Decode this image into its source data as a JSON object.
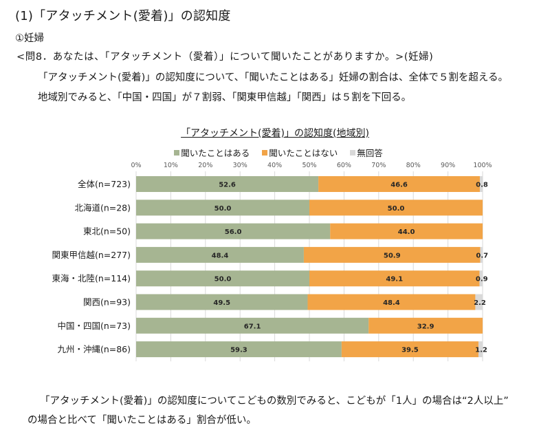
{
  "page": {
    "section_title": "(1)「アタッチメント(愛着)」の認知度",
    "sub_title": "①妊婦",
    "question": "<問8．あなたは、「アタッチメント（愛着）」について聞いたことがありますか。>(妊婦)",
    "summary_line_1": "「アタッチメント(愛着)」の認知度について、「聞いたことはある」妊婦の割合は、全体で５割を超える。",
    "summary_line_2": "地域別でみると、「中国・四国」が７割弱、「関東甲信越」「関西」は５割を下回る。",
    "footer_line_1": "「アタッチメント(愛着)」の認知度についてこどもの数別でみると、こどもが「1人」の場合は“2人以上”",
    "footer_line_2": "の場合と比べて「聞いたことはある」割合が低い。"
  },
  "chart_data": {
    "type": "bar",
    "orientation": "horizontal",
    "stacked": true,
    "title": "「アタッチメント(愛着)」の認知度(地域別)",
    "xlabel": "",
    "ylabel": "",
    "xlim": [
      0,
      100
    ],
    "x_ticks": [
      "0%",
      "10%",
      "20%",
      "30%",
      "40%",
      "50%",
      "60%",
      "70%",
      "80%",
      "90%",
      "100%"
    ],
    "grid": true,
    "legend_position": "top",
    "categories": [
      "全体(n=723)",
      "北海道(n=28)",
      "東北(n=50)",
      "関東甲信越(n=277)",
      "東海・北陸(n=114)",
      "関西(n=93)",
      "中国・四国(n=73)",
      "九州・沖縄(n=86)"
    ],
    "series": [
      {
        "name": "聞いたことはある",
        "color": "#a6b592",
        "values": [
          52.6,
          50.0,
          56.0,
          48.4,
          50.0,
          49.5,
          67.1,
          59.3
        ],
        "labels": [
          "52.6",
          "50.0",
          "56.0",
          "48.4",
          "50.0",
          "49.5",
          "67.1",
          "59.3"
        ]
      },
      {
        "name": "聞いたことはない",
        "color": "#f2a447",
        "values": [
          46.6,
          50.0,
          44.0,
          50.9,
          49.1,
          48.4,
          32.9,
          39.5
        ],
        "labels": [
          "46.6",
          "50.0",
          "44.0",
          "50.9",
          "49.1",
          "48.4",
          "32.9",
          "39.5"
        ]
      },
      {
        "name": "無回答",
        "color": "#d9d9d9",
        "values": [
          0.8,
          0,
          0,
          0.7,
          0.9,
          2.2,
          0,
          1.2
        ],
        "labels": [
          "0.8",
          "",
          "",
          "0.7",
          "0.9",
          "2.2",
          "",
          "1.2"
        ]
      }
    ]
  }
}
